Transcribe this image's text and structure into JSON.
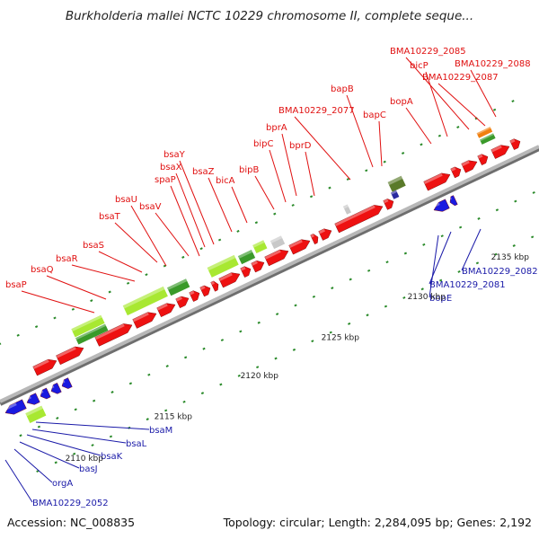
{
  "title": "Burkholderia mallei NCTC 10229 chromosome II, complete seque...",
  "footer": {
    "accession": "Accession: NC_008835",
    "topology": "Topology: circular; Length: 2,284,095 bp; Genes: 2,192"
  },
  "colors": {
    "forward_gene": "#ee1111",
    "reverse_gene": "#1a1ae0",
    "feature_green": "#3a9a2a",
    "feature_lightgreen": "#a8e832",
    "feature_gray": "#c8c8c8",
    "feature_orange": "#f08010",
    "label_top": "#e01010",
    "label_bottom": "#1a1aa8",
    "ruler_tick": "#2a8a2a"
  },
  "ruler_labels": [
    "2110 kbp",
    "2115 kbp",
    "2120 kbp",
    "2125 kbp",
    "2130 kbp",
    "2135 kbp"
  ],
  "labels_top": [
    "bsaP",
    "bsaQ",
    "bsaR",
    "bsaS",
    "bsaT",
    "bsaU",
    "bsaV",
    "spaP",
    "bsaX",
    "bsaY",
    "bsaZ",
    "bicA",
    "bipB",
    "bipC",
    "bprA",
    "bprD",
    "BMA10229_2077",
    "bapB",
    "bapC",
    "bopA",
    "bicP",
    "BMA10229_2085",
    "BMA10229_2087",
    "BMA10229_2088"
  ],
  "labels_bottom": [
    "bsaM",
    "bsaL",
    "bsaK",
    "basJ",
    "orgA",
    "BMA10229_2052",
    "BMA10229_2082",
    "BMA10229_2081",
    "bopE"
  ]
}
